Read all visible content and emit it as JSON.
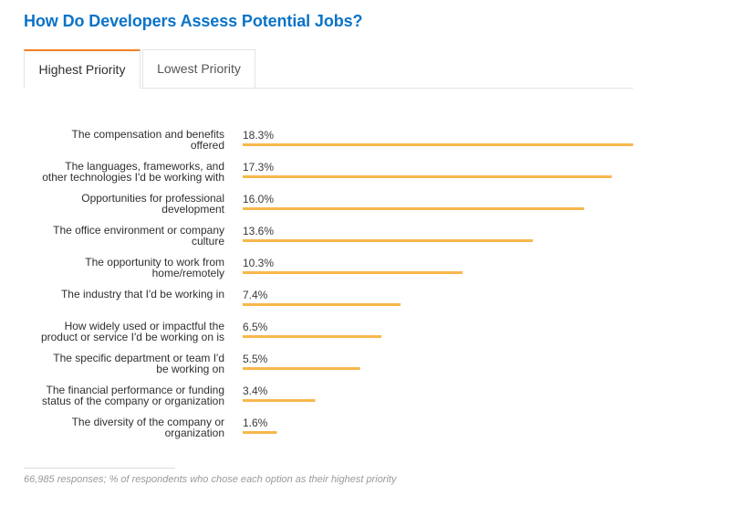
{
  "header": {
    "title": "How Do Developers Assess Potential Jobs?"
  },
  "tabs": [
    {
      "label": "Highest Priority",
      "active": true
    },
    {
      "label": "Lowest Priority",
      "active": false
    }
  ],
  "footnote": "66,985 responses; % of respondents who chose each option as their highest priority",
  "colors": {
    "bar": "#f8b74c",
    "title": "#0a73c8",
    "tab_accent": "#f48024"
  },
  "chart_data": {
    "type": "bar",
    "orientation": "horizontal",
    "categories": [
      [
        "The compensation and benefits",
        "offered"
      ],
      [
        "The languages, frameworks, and",
        "other technologies I'd be working with"
      ],
      [
        "Opportunities for professional",
        "development"
      ],
      [
        "The office environment or company",
        "culture"
      ],
      [
        "The opportunity to work from",
        "home/remotely"
      ],
      [
        "The industry that I'd be working in"
      ],
      [
        "How widely used or impactful the",
        "product or service I'd be working on is"
      ],
      [
        "The specific department or team I'd",
        "be working on"
      ],
      [
        "The financial performance or funding",
        "status of the company or organization"
      ],
      [
        "The diversity of the company or",
        "organization"
      ]
    ],
    "values": [
      18.3,
      17.3,
      16.0,
      13.6,
      10.3,
      7.4,
      6.5,
      5.5,
      3.4,
      1.6
    ],
    "value_labels": [
      "18.3%",
      "17.3%",
      "16.0%",
      "13.6%",
      "10.3%",
      "7.4%",
      "6.5%",
      "5.5%",
      "3.4%",
      "1.6%"
    ],
    "unit": "%",
    "xlim": [
      0,
      18.3
    ]
  }
}
